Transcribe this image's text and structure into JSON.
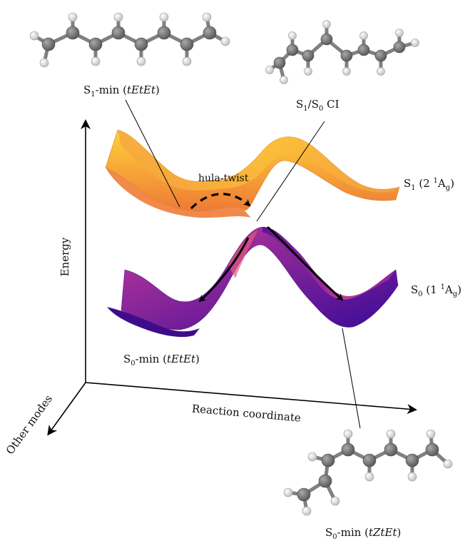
{
  "colors": {
    "s1_surface_light": "#ffd23a",
    "s1_surface_dark": "#ee7a35",
    "s0_surface_light": "#c33a9c",
    "s0_surface_dark": "#3a0a96",
    "molecule_carbon": "#6f6f6f",
    "molecule_hydrogen": "#e2e2e2",
    "arrow": "#000000"
  },
  "axes": {
    "y_label": "Energy",
    "x_label": "Reaction coordinate",
    "z_label": "Other modes"
  },
  "surfaces": {
    "s1": {
      "state": "S",
      "sub": "1",
      "open": " (2 ",
      "sup": "1",
      "term": "A",
      "term_sub": "g",
      "close": ")"
    },
    "s0": {
      "state": "S",
      "sub": "0",
      "open": " (1 ",
      "sup": "1",
      "term": "A",
      "term_sub": "g",
      "close": ")"
    }
  },
  "points": {
    "s1_min": {
      "state": "S",
      "sub": "1",
      "text": "-min (",
      "isomer": "tEtEt",
      "close": ")"
    },
    "ci": {
      "a": "S",
      "a_sub": "1",
      "slash": "/S",
      "b_sub": "0",
      "text": " CI"
    },
    "s0_min_left": {
      "state": "S",
      "sub": "0",
      "text": "-min (",
      "isomer": "tEtEt",
      "close": ")"
    },
    "s0_min_right": {
      "state": "S",
      "sub": "0",
      "text": "-min (",
      "isomer": "tZtEt",
      "close": ")"
    }
  },
  "path_label": "hula-twist",
  "molecules": {
    "s1_min": "tEtEt",
    "ci": "twisted",
    "s0_min_right": "tZtEt"
  }
}
